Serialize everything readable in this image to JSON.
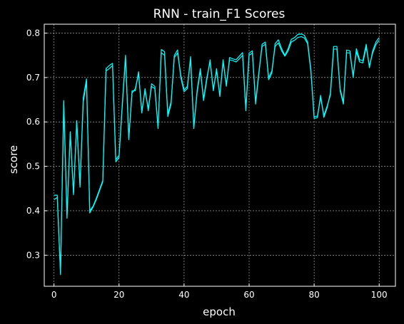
{
  "chart_data": {
    "type": "line",
    "title": "RNN - train_F1 Scores",
    "xlabel": "epoch",
    "ylabel": "score",
    "xlim": [
      -3.0,
      105.0
    ],
    "ylim": [
      0.23,
      0.82
    ],
    "xticks": [
      0,
      20,
      40,
      60,
      80,
      100
    ],
    "yticks": [
      0.3,
      0.4,
      0.5,
      0.6,
      0.7,
      0.8
    ],
    "grid": true,
    "colors": {
      "background": "#000000",
      "axes": "#ffffff",
      "grid": "#bfbfbf",
      "line": "#00ffff"
    },
    "series": [
      {
        "x": [
          0,
          1,
          2,
          3,
          4,
          5,
          6,
          7,
          8,
          9,
          10,
          11,
          12,
          13,
          14,
          15,
          16,
          17,
          18,
          19,
          20,
          21,
          22,
          23,
          24,
          25,
          26,
          27,
          28,
          29,
          30,
          31,
          32,
          33,
          34,
          35,
          36,
          37,
          38,
          39,
          40,
          41,
          42,
          43,
          44,
          45,
          46,
          47,
          48,
          49,
          50,
          51,
          52,
          53,
          54,
          55,
          56,
          57,
          58,
          59,
          60,
          61,
          62,
          63,
          64,
          65,
          66,
          67,
          68,
          69,
          70,
          71,
          72,
          73,
          74,
          75,
          76,
          77,
          78,
          79,
          80,
          81,
          82,
          83,
          84,
          85,
          86,
          87,
          88,
          89,
          90,
          91,
          92,
          93,
          94,
          95,
          96,
          97,
          98,
          99,
          100
        ],
        "values": [
          0.435,
          0.435,
          0.256,
          0.648,
          0.383,
          0.578,
          0.436,
          0.603,
          0.453,
          0.654,
          0.697,
          0.395,
          0.408,
          0.425,
          0.445,
          0.465,
          0.72,
          0.727,
          0.732,
          0.51,
          0.52,
          0.64,
          0.75,
          0.56,
          0.67,
          0.67,
          0.713,
          0.62,
          0.675,
          0.625,
          0.686,
          0.68,
          0.585,
          0.763,
          0.758,
          0.612,
          0.64,
          0.75,
          0.762,
          0.7,
          0.668,
          0.675,
          0.747,
          0.585,
          0.67,
          0.72,
          0.648,
          0.695,
          0.74,
          0.67,
          0.72,
          0.657,
          0.74,
          0.68,
          0.745,
          0.742,
          0.74,
          0.748,
          0.756,
          0.625,
          0.755,
          0.76,
          0.64,
          0.708,
          0.775,
          0.78,
          0.695,
          0.71,
          0.776,
          0.785,
          0.765,
          0.75,
          0.765,
          0.786,
          0.79,
          0.797,
          0.798,
          0.795,
          0.78,
          0.718,
          0.608,
          0.6095,
          0.66,
          0.61,
          0.632,
          0.665,
          0.77,
          0.77,
          0.67,
          0.64,
          0.762,
          0.76,
          0.7,
          0.765,
          0.74,
          0.738,
          0.775,
          0.722,
          0.76,
          0.78,
          0.79
        ]
      },
      {
        "x": [
          0,
          1,
          2,
          3,
          4,
          5,
          6,
          7,
          8,
          9,
          10,
          11,
          12,
          13,
          14,
          15,
          16,
          17,
          18,
          19,
          20,
          21,
          22,
          23,
          24,
          25,
          26,
          27,
          28,
          29,
          30,
          31,
          32,
          33,
          34,
          35,
          36,
          37,
          38,
          39,
          40,
          41,
          42,
          43,
          44,
          45,
          46,
          47,
          48,
          49,
          50,
          51,
          52,
          53,
          54,
          55,
          56,
          57,
          58,
          59,
          60,
          61,
          62,
          63,
          64,
          65,
          66,
          67,
          68,
          69,
          70,
          71,
          72,
          73,
          74,
          75,
          76,
          77,
          78,
          79,
          80,
          81,
          82,
          83,
          84,
          85,
          86,
          87,
          88,
          89,
          90,
          91,
          92,
          93,
          94,
          95,
          96,
          97,
          98,
          99,
          100
        ],
        "values": [
          0.425,
          0.43,
          0.26,
          0.64,
          0.39,
          0.575,
          0.44,
          0.6,
          0.458,
          0.645,
          0.69,
          0.4,
          0.41,
          0.428,
          0.448,
          0.468,
          0.715,
          0.72,
          0.727,
          0.515,
          0.525,
          0.635,
          0.745,
          0.565,
          0.665,
          0.675,
          0.708,
          0.625,
          0.67,
          0.63,
          0.68,
          0.675,
          0.59,
          0.756,
          0.75,
          0.618,
          0.645,
          0.745,
          0.755,
          0.705,
          0.672,
          0.68,
          0.74,
          0.59,
          0.665,
          0.715,
          0.652,
          0.7,
          0.735,
          0.675,
          0.715,
          0.66,
          0.735,
          0.685,
          0.74,
          0.738,
          0.735,
          0.742,
          0.75,
          0.63,
          0.75,
          0.755,
          0.645,
          0.712,
          0.77,
          0.775,
          0.7,
          0.715,
          0.77,
          0.778,
          0.76,
          0.748,
          0.76,
          0.78,
          0.784,
          0.79,
          0.792,
          0.789,
          0.776,
          0.713,
          0.612,
          0.613,
          0.655,
          0.614,
          0.636,
          0.66,
          0.764,
          0.764,
          0.674,
          0.645,
          0.756,
          0.755,
          0.705,
          0.758,
          0.735,
          0.733,
          0.768,
          0.726,
          0.755,
          0.774,
          0.784
        ]
      }
    ]
  }
}
